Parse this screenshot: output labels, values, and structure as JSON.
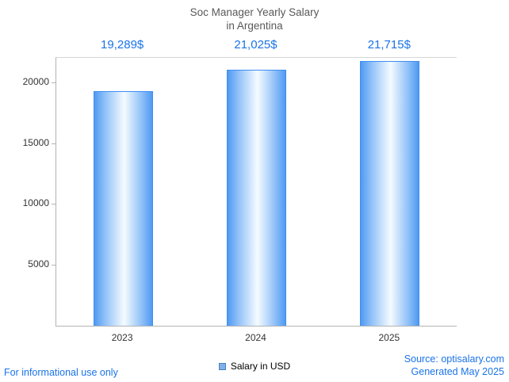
{
  "chart_data": {
    "type": "bar",
    "title": "Soc Manager Yearly Salary in Argentina",
    "title_line1": "Soc Manager Yearly Salary",
    "title_line2": "in Argentina",
    "categories": [
      "2023",
      "2024",
      "2025"
    ],
    "values": [
      19289,
      21025,
      21715
    ],
    "value_labels": [
      "19,289$",
      "21,025$",
      "21,715$"
    ],
    "series_name": "Salary in USD",
    "xlabel": "",
    "ylabel": "",
    "ylim": [
      0,
      22000
    ],
    "yticks": [
      5000,
      10000,
      15000,
      20000
    ],
    "grid": false,
    "legend_position": "bottom"
  },
  "legend": {
    "label": "Salary in USD"
  },
  "footer": {
    "disclaimer": "For informational use only",
    "source": "Source: optisalary.com",
    "generated": "Generated May 2025"
  },
  "colors": {
    "accent": "#1a73e8",
    "bar_edge": "#3e8ef0",
    "bar_fill_light": "#eaf5ff",
    "bar_fill_dark": "#4f9af2",
    "title_text": "#595959",
    "axis_line": "#b3b3b3",
    "tick_text": "#333333"
  }
}
